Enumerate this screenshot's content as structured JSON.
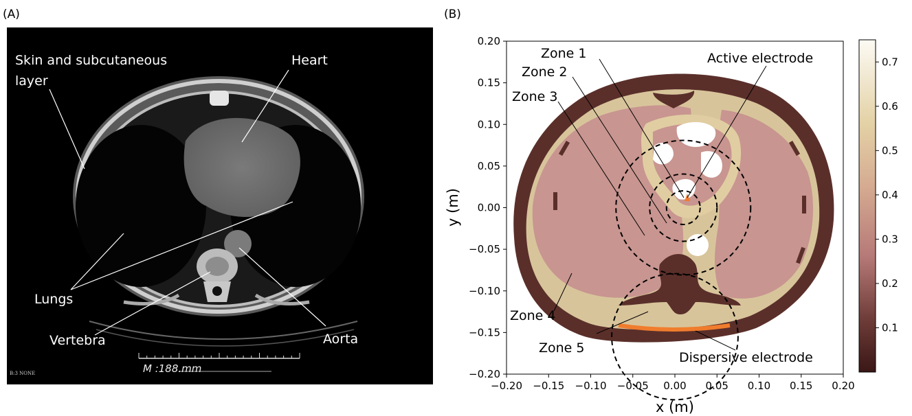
{
  "panel_a": {
    "label": "(A)",
    "annotations": {
      "skin": [
        "Skin and subcutaneous",
        "layer"
      ],
      "heart": "Heart",
      "lungs": "Lungs",
      "vertebra": "Vertebra",
      "aorta": "Aorta"
    },
    "scale_text": "M :188.mm",
    "corner_text": "B:3  NONE"
  },
  "panel_b": {
    "label": "(B)",
    "annotations": {
      "zone1": "Zone 1",
      "zone2": "Zone 2",
      "zone3": "Zone 3",
      "zone4": "Zone 4",
      "zone5": "Zone 5",
      "active": "Active electrode",
      "dispersive": "Dispersive electrode"
    },
    "colors": {
      "dark_tissue": "#5a2f2a",
      "fat": "#d8c49b",
      "muscle": "#c89590",
      "electrode": "#f07d2d"
    }
  },
  "chart_data": {
    "type": "heatmap",
    "xlabel": "x (m)",
    "ylabel": "y (m)",
    "xlim": [
      -0.2,
      0.2
    ],
    "ylim": [
      -0.2,
      0.2
    ],
    "x_ticks": [
      "−0.20",
      "−0.15",
      "−0.10",
      "−0.05",
      "0.00",
      "0.05",
      "0.10",
      "0.15",
      "0.20"
    ],
    "y_ticks": [
      "0.20",
      "0.15",
      "0.10",
      "0.05",
      "0.00",
      "−0.05",
      "−0.10",
      "−0.15",
      "−0.20"
    ],
    "colorbar": {
      "min": 0.0,
      "max": 0.75,
      "ticks": [
        "0.7",
        "0.6",
        "0.5",
        "0.4",
        "0.3",
        "0.2",
        "0.1"
      ]
    },
    "zone_circles": [
      {
        "name": "Zone 1",
        "cx": 0.01,
        "cy": 0.0,
        "r": 0.02
      },
      {
        "name": "Zone 2",
        "cx": 0.01,
        "cy": 0.0,
        "r": 0.04
      },
      {
        "name": "Zone 3",
        "cx": 0.01,
        "cy": 0.0,
        "r": 0.08
      },
      {
        "name": "Zone 5",
        "cx": 0.0,
        "cy": -0.155,
        "r": 0.075
      }
    ]
  }
}
